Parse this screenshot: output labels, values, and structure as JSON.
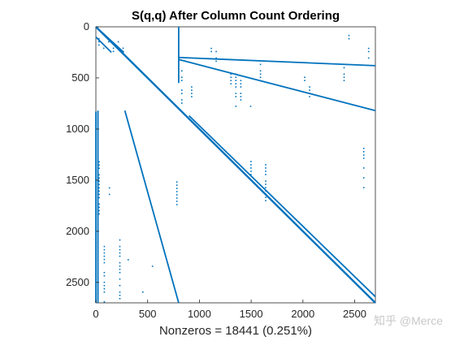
{
  "chart_data": {
    "type": "scatter",
    "title": "S(q,q) After Column Count Ordering",
    "xlabel": "Nonzeros = 18441 (0.251%)",
    "ylabel": "",
    "xlim": [
      0,
      2700
    ],
    "ylim": [
      0,
      2700
    ],
    "y_reversed": true,
    "x_ticks": [
      0,
      500,
      1000,
      1500,
      2000,
      2500
    ],
    "y_ticks": [
      0,
      500,
      1000,
      1500,
      2000,
      2500
    ],
    "x_tick_labels": [
      "0",
      "500",
      "1000",
      "1500",
      "2000",
      "2500"
    ],
    "y_tick_labels": [
      "0",
      "500",
      "1000",
      "1500",
      "2000",
      "2500"
    ],
    "marker_color": "#0072BD",
    "grid": false,
    "segments": [
      {
        "name": "main-diagonal",
        "from": [
          0,
          0
        ],
        "to": [
          2700,
          2700
        ]
      },
      {
        "name": "diagonal-upper-band",
        "from": [
          900,
          870
        ],
        "to": [
          2700,
          2640
        ]
      },
      {
        "name": "upper-block-diagonal-a",
        "from": [
          0,
          0
        ],
        "to": [
          270,
          250
        ]
      },
      {
        "name": "upper-block-diagonal-b",
        "from": [
          0,
          100
        ],
        "to": [
          150,
          250
        ]
      },
      {
        "name": "upper-right-slant",
        "from": [
          800,
          320
        ],
        "to": [
          2700,
          820
        ]
      },
      {
        "name": "upper-right-slant-b",
        "from": [
          800,
          300
        ],
        "to": [
          2700,
          380
        ]
      },
      {
        "name": "lower-left-slant-a",
        "from": [
          280,
          820
        ],
        "to": [
          800,
          2700
        ]
      },
      {
        "name": "lower-left-slant-b",
        "from": [
          0,
          830
        ],
        "to": [
          0,
          2700
        ]
      },
      {
        "name": "left-edge-column",
        "from": [
          20,
          820
        ],
        "to": [
          20,
          2700
        ]
      },
      {
        "name": "upper-top-block-edge",
        "from": [
          800,
          0
        ],
        "to": [
          800,
          550
        ]
      }
    ],
    "blocks": [
      {
        "name": "top-left-dense",
        "x": [
          0,
          280
        ],
        "y": [
          0,
          250
        ],
        "density": 0.9
      },
      {
        "name": "upper-right-band-dots",
        "x": [
          800,
          2700
        ],
        "y": [
          0,
          850
        ],
        "density": 0.25
      },
      {
        "name": "left-column-band",
        "x": [
          0,
          300
        ],
        "y": [
          820,
          2700
        ],
        "density": 0.35
      },
      {
        "name": "middle-sparse",
        "x": [
          900,
          2700
        ],
        "y": [
          880,
          2700
        ],
        "density": 0.08
      },
      {
        "name": "lower-left-fill",
        "x": [
          0,
          800
        ],
        "y": [
          1400,
          2700
        ],
        "density": 0.15
      }
    ]
  },
  "watermark": {
    "text": "知乎 @Merce"
  }
}
